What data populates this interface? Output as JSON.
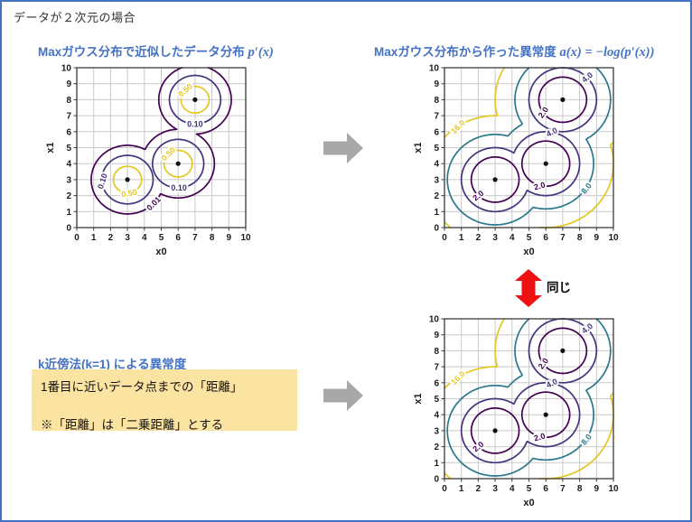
{
  "page_title": "データが２次元の場合",
  "labels": {
    "same": "同じ",
    "knn_title": "k近傍法(k=1) による異常度",
    "knn_note_line1": "1番目に近いデータ点までの「距離」",
    "knn_note_line2": "※「距離」は「二乗距離」とする"
  },
  "colors": {
    "accent_blue": "#4472C4",
    "note_bg": "#FBE3A2",
    "arrow_gray": "#A8A8A8",
    "arrow_red": "#EE1111"
  },
  "chart_data": [
    {
      "id": "density-contour",
      "type": "contour",
      "title": "Maxガウス分布で近似したデータ分布",
      "title_math": "p′(x)",
      "xlabel": "x0",
      "ylabel": "x1",
      "xlim": [
        0,
        10
      ],
      "ylim": [
        0,
        10
      ],
      "xticks": [
        0,
        1,
        2,
        3,
        4,
        5,
        6,
        7,
        8,
        9,
        10
      ],
      "yticks": [
        0,
        1,
        2,
        3,
        4,
        5,
        6,
        7,
        8,
        9,
        10
      ],
      "grid": true,
      "points": [
        [
          3,
          3
        ],
        [
          6,
          4
        ],
        [
          7,
          8
        ]
      ],
      "field": "density",
      "levels": [
        {
          "value": 0.01,
          "label": "0.01",
          "color": "#440154",
          "label_positions": [
            {
              "x": 4.55,
              "y": 1.5,
              "rot": -45
            }
          ]
        },
        {
          "value": 0.1,
          "label": "0.10",
          "color": "#46327e",
          "label_positions": [
            {
              "x": 1.52,
              "y": 2.9,
              "rot": -72
            },
            {
              "x": 6.05,
              "y": 2.48,
              "rot": 0
            },
            {
              "x": 7.0,
              "y": 6.48,
              "rot": 0
            }
          ]
        },
        {
          "value": 0.5,
          "label": "0.50",
          "color": "#e4c720",
          "label_positions": [
            {
              "x": 3.1,
              "y": 2.15,
              "rot": -10
            },
            {
              "x": 5.42,
              "y": 4.6,
              "rot": -45
            },
            {
              "x": 6.42,
              "y": 8.6,
              "rot": -42
            }
          ]
        }
      ]
    },
    {
      "id": "anomaly-contour-top",
      "type": "contour",
      "title": "Maxガウス分布から作った異常度",
      "title_math": "a(x) = −log(p′(x))",
      "xlabel": "x0",
      "ylabel": "x1",
      "xlim": [
        0,
        10
      ],
      "ylim": [
        0,
        10
      ],
      "xticks": [
        0,
        1,
        2,
        3,
        4,
        5,
        6,
        7,
        8,
        9,
        10
      ],
      "yticks": [
        0,
        1,
        2,
        3,
        4,
        5,
        6,
        7,
        8,
        9,
        10
      ],
      "grid": true,
      "points": [
        [
          3,
          3
        ],
        [
          6,
          4
        ],
        [
          7,
          8
        ]
      ],
      "field": "anomaly",
      "levels": [
        {
          "value": 2,
          "label": "2.0",
          "color": "#440154",
          "label_positions": [
            {
              "x": 2.0,
              "y": 2.0,
              "rot": -40
            },
            {
              "x": 5.63,
              "y": 2.6,
              "rot": -15
            },
            {
              "x": 5.85,
              "y": 7.2,
              "rot": -55
            }
          ]
        },
        {
          "value": 4,
          "label": "4.0",
          "color": "#46327e",
          "label_positions": [
            {
              "x": 6.35,
              "y": 5.97,
              "rot": -25
            },
            {
              "x": 8.45,
              "y": 9.4,
              "rot": -38
            }
          ]
        },
        {
          "value": 8,
          "label": "8.0",
          "color": "#2a788e",
          "label_positions": [
            {
              "x": 8.4,
              "y": 2.45,
              "rot": -50
            }
          ]
        },
        {
          "value": 16,
          "label": "16.0",
          "color": "#e4c720",
          "label_positions": [
            {
              "x": 0.8,
              "y": 6.3,
              "rot": -45
            }
          ]
        }
      ]
    },
    {
      "id": "anomaly-contour-bottom",
      "type": "contour",
      "xlabel": "x0",
      "ylabel": "x1",
      "xlim": [
        0,
        10
      ],
      "ylim": [
        0,
        10
      ],
      "xticks": [
        0,
        1,
        2,
        3,
        4,
        5,
        6,
        7,
        8,
        9,
        10
      ],
      "yticks": [
        0,
        1,
        2,
        3,
        4,
        5,
        6,
        7,
        8,
        9,
        10
      ],
      "grid": true,
      "points": [
        [
          3,
          3
        ],
        [
          6,
          4
        ],
        [
          7,
          8
        ]
      ],
      "field": "anomaly",
      "levels": [
        {
          "value": 2,
          "label": "2.0",
          "color": "#440154",
          "label_positions": [
            {
              "x": 2.0,
              "y": 2.0,
              "rot": -40
            },
            {
              "x": 5.63,
              "y": 2.6,
              "rot": -15
            },
            {
              "x": 5.85,
              "y": 7.2,
              "rot": -55
            }
          ]
        },
        {
          "value": 4,
          "label": "4.0",
          "color": "#46327e",
          "label_positions": [
            {
              "x": 6.35,
              "y": 5.97,
              "rot": -25
            },
            {
              "x": 8.45,
              "y": 9.4,
              "rot": -38
            }
          ]
        },
        {
          "value": 8,
          "label": "8.0",
          "color": "#2a788e",
          "label_positions": [
            {
              "x": 8.4,
              "y": 2.45,
              "rot": -50
            }
          ]
        },
        {
          "value": 16,
          "label": "16.0",
          "color": "#e4c720",
          "label_positions": [
            {
              "x": 0.8,
              "y": 6.3,
              "rot": -45
            }
          ]
        }
      ]
    }
  ]
}
